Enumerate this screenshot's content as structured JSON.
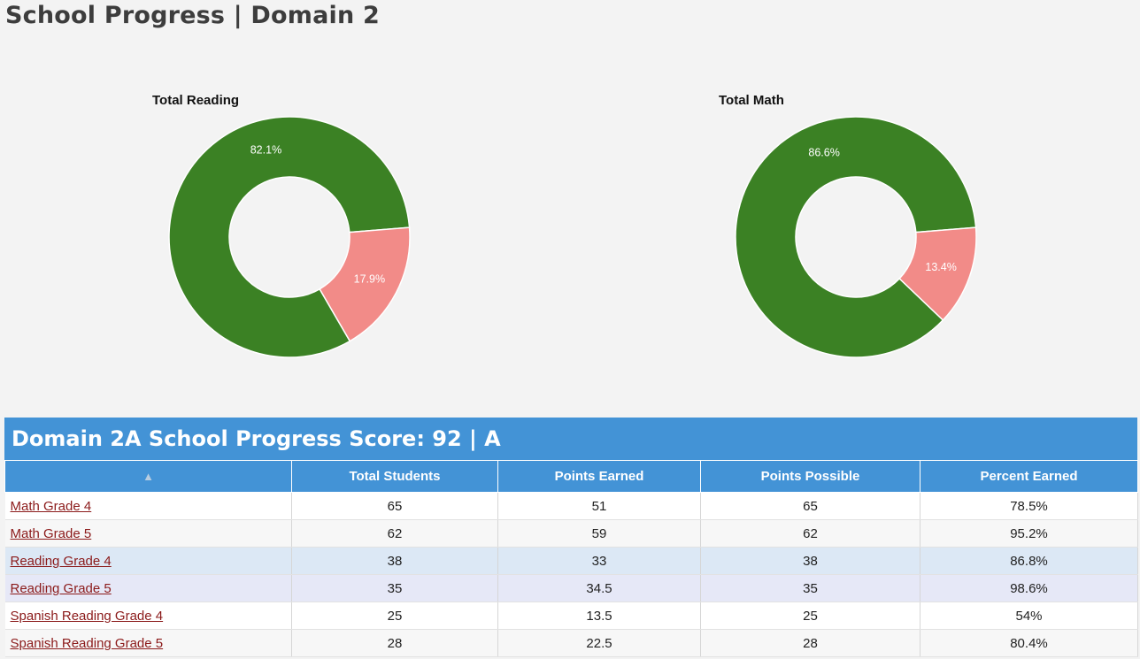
{
  "page": {
    "title": "School Progress | Domain 2"
  },
  "charts": [
    {
      "id": "reading",
      "title": "Total Reading",
      "slices": [
        {
          "label": "82.1%",
          "value": 82.1,
          "color": "#3b8124"
        },
        {
          "label": "17.9%",
          "value": 17.9,
          "color": "#f28b88"
        }
      ]
    },
    {
      "id": "math",
      "title": "Total Math",
      "slices": [
        {
          "label": "86.6%",
          "value": 86.6,
          "color": "#3b8124"
        },
        {
          "label": "13.4%",
          "value": 13.4,
          "color": "#f28b88"
        }
      ]
    }
  ],
  "chart_data": [
    {
      "type": "pie",
      "title": "Total Reading",
      "values": [
        82.1,
        17.9
      ],
      "labels": [
        "82.1%",
        "17.9%"
      ],
      "colors": [
        "#3b8124",
        "#f28b88"
      ]
    },
    {
      "type": "pie",
      "title": "Total Math",
      "values": [
        86.6,
        13.4
      ],
      "labels": [
        "86.6%",
        "13.4%"
      ],
      "colors": [
        "#3b8124",
        "#f28b88"
      ]
    }
  ],
  "score": {
    "title": "Domain 2A School Progress Score: 92 | A"
  },
  "table": {
    "sort_icon": "▲",
    "columns": [
      "Total Students",
      "Points Earned",
      "Points Possible",
      "Percent Earned"
    ],
    "rows": [
      {
        "name": "Math Grade 4",
        "cells": [
          "65",
          "51",
          "65",
          "78.5%"
        ],
        "bg": "#ffffff"
      },
      {
        "name": "Math Grade 5",
        "cells": [
          "62",
          "59",
          "62",
          "95.2%"
        ],
        "bg": "#f7f7f7"
      },
      {
        "name": "Reading Grade 4",
        "cells": [
          "38",
          "33",
          "38",
          "86.8%"
        ],
        "bg": "#dce8f5"
      },
      {
        "name": "Reading Grade 5",
        "cells": [
          "35",
          "34.5",
          "35",
          "98.6%"
        ],
        "bg": "#e6e8f7"
      },
      {
        "name": "Spanish Reading Grade 4",
        "cells": [
          "25",
          "13.5",
          "25",
          "54%"
        ],
        "bg": "#ffffff"
      },
      {
        "name": "Spanish Reading Grade 5",
        "cells": [
          "28",
          "22.5",
          "28",
          "80.4%"
        ],
        "bg": "#f7f7f7"
      }
    ]
  },
  "colors": {
    "header": "#4393d6",
    "link": "#8b1a1a",
    "green": "#3b8124",
    "pink": "#f28b88"
  }
}
